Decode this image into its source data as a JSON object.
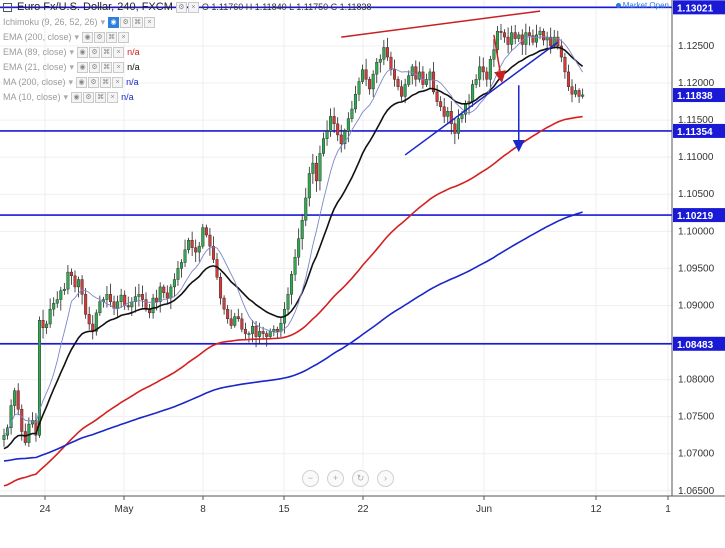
{
  "header": {
    "title": "Euro Fx/U.S. Dollar, 240, FXCM",
    "ohlc": "O 1.11760 H 1.11840 L 1.11750 C 1.11838",
    "market_status": "Market Open"
  },
  "indicators": [
    {
      "label": "Ichimoku (9, 26, 52, 26)",
      "value": "",
      "color": "#9b9b9b"
    },
    {
      "label": "EMA (200, close)",
      "value": "",
      "color": "#9b9b9b"
    },
    {
      "label": "EMA (89, close)",
      "value": "n/a",
      "color": "#d32020"
    },
    {
      "label": "EMA (21, close)",
      "value": "n/a",
      "color": "#111111"
    },
    {
      "label": "MA (200, close)",
      "value": "n/a",
      "color": "#1a27c9"
    },
    {
      "label": "MA (10, close)",
      "value": "n/a",
      "color": "#1a27c9"
    }
  ],
  "zoom_controls": [
    {
      "name": "zoom-out-button",
      "glyph": "−"
    },
    {
      "name": "zoom-in-button",
      "glyph": "+"
    },
    {
      "name": "reset-button",
      "glyph": "↻"
    },
    {
      "name": "scroll-right-button",
      "glyph": "›"
    }
  ],
  "chart_data": {
    "type": "candlestick",
    "x_tick_labels": [
      "24",
      "May",
      "8",
      "15",
      "22",
      "Jun",
      "12",
      "1"
    ],
    "y_tick_labels": [
      "1.06500",
      "1.07000",
      "1.07500",
      "1.08000",
      "1.08500",
      "1.09000",
      "1.09500",
      "1.10000",
      "1.10500",
      "1.11000",
      "1.11500",
      "1.12000",
      "1.12500",
      "1.13000"
    ],
    "ylim": [
      1.0643,
      1.1312
    ],
    "price_labels": [
      {
        "value": 1.13021,
        "label": "1.13021",
        "color": "#1a1ad6"
      },
      {
        "value": 1.11838,
        "label": "1.11838",
        "color": "#1a1ad6"
      },
      {
        "value": 1.11354,
        "label": "1.11354",
        "color": "#1a1ad6"
      },
      {
        "value": 1.10219,
        "label": "1.10219",
        "color": "#1a1ad6"
      },
      {
        "value": 1.08483,
        "label": "1.08483",
        "color": "#1a1ad6"
      }
    ],
    "horizontal_levels": [
      1.13021,
      1.11354,
      1.10219,
      1.08483
    ],
    "candles_close": [
      1.0725,
      1.0735,
      1.0765,
      1.0785,
      1.076,
      1.073,
      1.0715,
      1.074,
      1.0745,
      1.0725,
      1.088,
      1.087,
      1.0875,
      1.0895,
      1.0903,
      1.0908,
      1.092,
      1.0922,
      1.0945,
      1.094,
      1.0925,
      1.0935,
      1.0915,
      1.0888,
      1.0875,
      1.0865,
      1.089,
      1.0905,
      1.0908,
      1.0915,
      1.0905,
      1.0896,
      1.0905,
      1.0914,
      1.09,
      1.0898,
      1.0905,
      1.0912,
      1.0915,
      1.0908,
      1.0895,
      1.089,
      1.091,
      1.0905,
      1.0925,
      1.0917,
      1.091,
      1.0925,
      1.0935,
      1.095,
      1.0958,
      1.0975,
      1.0988,
      1.0978,
      1.0972,
      1.098,
      1.1005,
      1.0995,
      1.098,
      1.0962,
      1.0938,
      1.091,
      1.0895,
      1.0882,
      1.0873,
      1.0885,
      1.0882,
      1.0868,
      1.0862,
      1.0862,
      1.0872,
      1.0858,
      1.0865,
      1.0862,
      1.0858,
      1.0865,
      1.0868,
      1.0865,
      1.0876,
      1.0895,
      1.0915,
      1.0942,
      1.0965,
      1.099,
      1.1015,
      1.1045,
      1.1078,
      1.1092,
      1.1068,
      1.1105,
      1.1125,
      1.1135,
      1.1155,
      1.1145,
      1.113,
      1.1118,
      1.1135,
      1.1152,
      1.1165,
      1.1185,
      1.1202,
      1.1218,
      1.1205,
      1.1192,
      1.1212,
      1.1228,
      1.1232,
      1.1248,
      1.1235,
      1.1218,
      1.1205,
      1.1195,
      1.1182,
      1.1198,
      1.121,
      1.1222,
      1.1205,
      1.1215,
      1.1198,
      1.1205,
      1.1215,
      1.1188,
      1.1175,
      1.1168,
      1.1155,
      1.1162,
      1.1145,
      1.1132,
      1.1152,
      1.1158,
      1.1172,
      1.1175,
      1.1198,
      1.1205,
      1.1222,
      1.1215,
      1.1205,
      1.1232,
      1.1245,
      1.127,
      1.1268,
      1.1262,
      1.1252,
      1.1268,
      1.126,
      1.1265,
      1.1252,
      1.1268,
      1.1264,
      1.1255,
      1.1265,
      1.127,
      1.1258,
      1.1262,
      1.125,
      1.1262,
      1.125,
      1.1235,
      1.1215,
      1.1195,
      1.1185,
      1.119,
      1.1182,
      1.1184
    ],
    "series": [
      {
        "name": "EMA (200, close)",
        "color": "#d32020"
      },
      {
        "name": "EMA (21, close)",
        "color": "#111111"
      },
      {
        "name": "MA (200, close)",
        "color": "#1a27c9"
      },
      {
        "name": "MA (10, close)",
        "color": "#7d86c9"
      }
    ],
    "annotations": [
      {
        "type": "trendline",
        "color": "#c82020",
        "points": [
          [
            95,
            1.1262
          ],
          [
            151,
            1.1297
          ]
        ]
      },
      {
        "type": "trendline",
        "color": "#1a27c9",
        "points": [
          [
            113,
            1.1103
          ],
          [
            156,
            1.1255
          ]
        ]
      },
      {
        "type": "arrow",
        "color": "#c82020",
        "points": [
          [
            138,
            1.1265
          ],
          [
            140,
            1.1208
          ]
        ]
      },
      {
        "type": "arrow",
        "color": "#1a27c9",
        "points": [
          [
            145,
            1.1197
          ],
          [
            145,
            1.1115
          ]
        ]
      }
    ]
  }
}
